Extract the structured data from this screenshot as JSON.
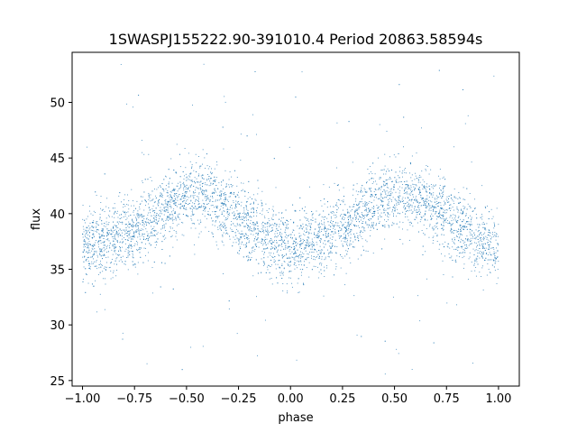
{
  "chart_data": {
    "type": "scatter",
    "title": "1SWASPJ155222.90-391010.4 Period 20863.58594s",
    "xlabel": "phase",
    "ylabel": "flux",
    "xlim": [
      -1.05,
      1.1
    ],
    "ylim": [
      24.5,
      54.5
    ],
    "xticks": [
      -1.0,
      -0.75,
      -0.5,
      -0.25,
      0.0,
      0.25,
      0.5,
      0.75,
      1.0
    ],
    "xtick_labels": [
      "−1.00",
      "−0.75",
      "−0.50",
      "−0.25",
      "0.00",
      "0.25",
      "0.50",
      "0.75",
      "1.00"
    ],
    "yticks": [
      25,
      30,
      35,
      40,
      45,
      50
    ],
    "ytick_labels": [
      "25",
      "30",
      "35",
      "40",
      "45",
      "50"
    ],
    "grid": false,
    "marker_color": "#1f77b4",
    "series": [
      {
        "x": [
          -1.0,
          -0.875,
          -0.75,
          -0.625,
          -0.5,
          -0.375,
          -0.25,
          -0.125,
          0.0,
          0.125,
          0.25,
          0.375,
          0.5,
          0.625,
          0.75,
          0.875,
          1.0
        ],
        "y": [
          37.0,
          37.4,
          38.6,
          40.2,
          41.6,
          41.3,
          39.6,
          37.9,
          36.8,
          37.4,
          38.8,
          40.4,
          41.7,
          41.3,
          39.7,
          37.8,
          37.0
        ],
        "spread": 1.6
      }
    ]
  }
}
